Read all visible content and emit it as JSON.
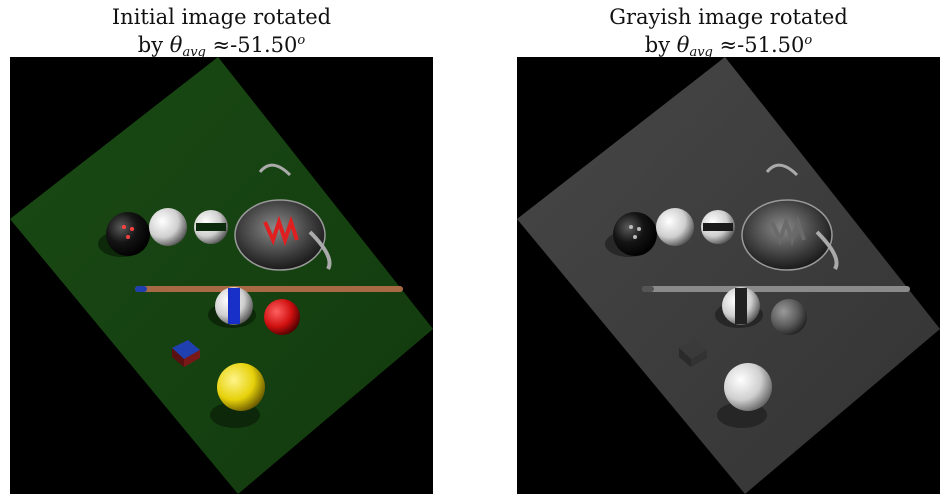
{
  "figure": {
    "panels": [
      {
        "title_line1": "Initial image rotated",
        "title_line2_prefix": "by ",
        "theta_symbol": "θ",
        "theta_subscript": "avg",
        "approx_symbol": " ≈",
        "angle_value": "-51.50",
        "degree_superscript": "o",
        "color_mode": "color"
      },
      {
        "title_line1": "Grayish image rotated",
        "title_line2_prefix": "by ",
        "theta_symbol": "θ",
        "theta_subscript": "avg",
        "approx_symbol": " ≈",
        "angle_value": "-51.50",
        "degree_superscript": "o",
        "color_mode": "grayscale"
      }
    ]
  },
  "colors": {
    "table_felt": "#1d4a16",
    "background": "#000000",
    "ball_white": "#e8e8e8",
    "ball_red": "#d01010",
    "ball_yellow": "#e6d10a",
    "ball_blue_stripe": "#1830c8",
    "cue_wood": "#a86a44",
    "chalk_blue": "#2040b0",
    "teapot_red": "#e02020"
  }
}
